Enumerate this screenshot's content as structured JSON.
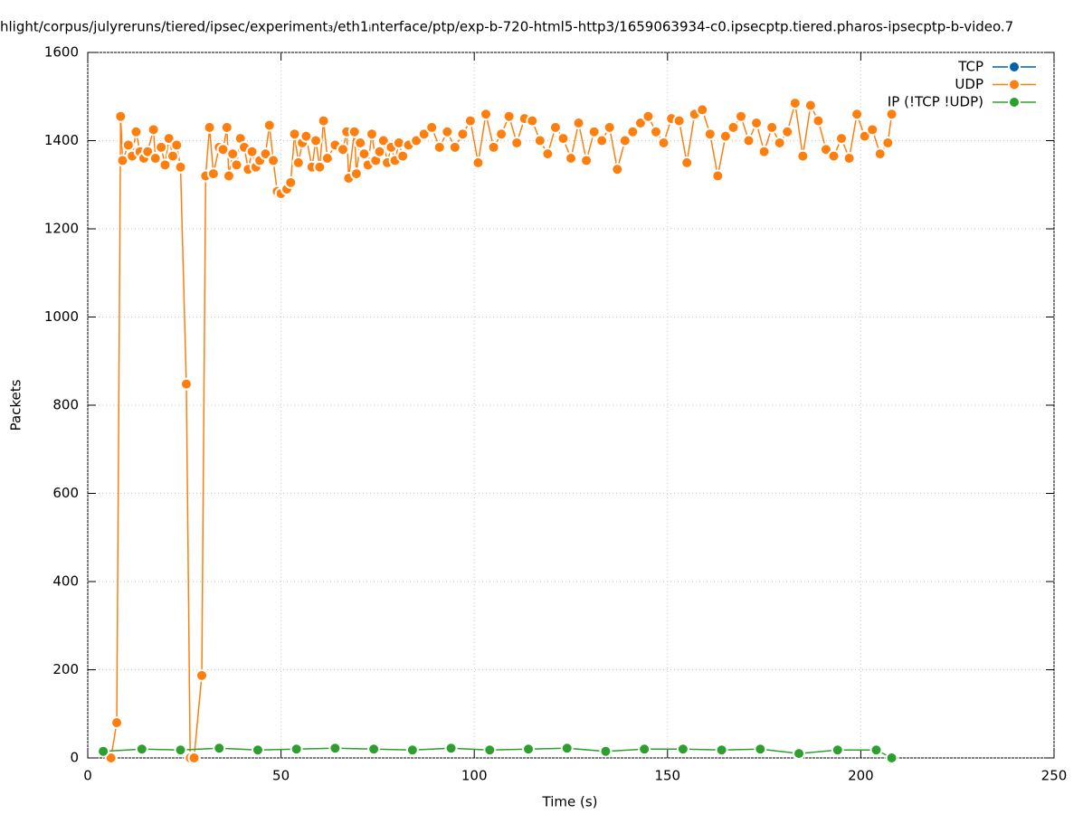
{
  "chart_data": {
    "type": "line",
    "title": "hlight/corpus/julyreruns/tiered/ipsec/experiment₃/eth1ᵢnterface/ptp/exp-b-720-html5-http3/1659063934-c0.ipsecptp.tiered.pharos-ipsecptp-b-video.7",
    "x_label": "Time (s)",
    "y_label": "Packets",
    "xlim": [
      0,
      250
    ],
    "xticks": [
      0,
      50,
      100,
      150,
      200,
      250
    ],
    "ylim": [
      0,
      1600
    ],
    "yticks": [
      0,
      200,
      400,
      600,
      800,
      1000,
      1200,
      1400,
      1600
    ],
    "grid": true,
    "legend": "top-right",
    "series": [
      {
        "name": "TCP",
        "color": "#0060ad",
        "x": [],
        "values": []
      },
      {
        "name": "UDP",
        "color": "#ff7f0e",
        "x": [
          6,
          7.5,
          8.5,
          9,
          10.5,
          11.5,
          12.5,
          13.5,
          14.5,
          15.5,
          17,
          17.5,
          19,
          20,
          21,
          22,
          23,
          24,
          25.5,
          26.5,
          27.5,
          29.5,
          30.5,
          31.5,
          32.5,
          34,
          35,
          36,
          36.5,
          37.5,
          38.5,
          39.5,
          40.5,
          41.5,
          42.5,
          43.5,
          44.5,
          46,
          47,
          48,
          49,
          50,
          51.5,
          52.5,
          53.5,
          54.5,
          55.5,
          56.5,
          58,
          59,
          60,
          61,
          62,
          64,
          66,
          67,
          67.5,
          69,
          69.5,
          70.5,
          71.5,
          72.5,
          73.5,
          74.5,
          75.5,
          76.5,
          77.5,
          78.5,
          79.5,
          80.5,
          81.5,
          83,
          85,
          87,
          89,
          91,
          93,
          95,
          97,
          99,
          101,
          103,
          105,
          107,
          109,
          111,
          113,
          115,
          117,
          119,
          121,
          123,
          125,
          127,
          129,
          131,
          133,
          135,
          137,
          139,
          141,
          143,
          145,
          147,
          149,
          151,
          153,
          155,
          157,
          159,
          161,
          163,
          165,
          167,
          169,
          171,
          173,
          175,
          177,
          179,
          181,
          183,
          185,
          187,
          189,
          191,
          193,
          195,
          197,
          199,
          201,
          203,
          205,
          207,
          208
        ],
        "values": [
          0,
          80,
          1455,
          1355,
          1390,
          1365,
          1420,
          1375,
          1360,
          1375,
          1425,
          1360,
          1385,
          1345,
          1405,
          1365,
          1390,
          1340,
          848,
          0,
          0,
          187,
          1320,
          1430,
          1325,
          1385,
          1380,
          1430,
          1320,
          1370,
          1345,
          1405,
          1385,
          1335,
          1375,
          1340,
          1355,
          1370,
          1435,
          1355,
          1285,
          1280,
          1290,
          1305,
          1415,
          1350,
          1395,
          1410,
          1340,
          1400,
          1340,
          1445,
          1360,
          1390,
          1380,
          1420,
          1315,
          1420,
          1325,
          1395,
          1370,
          1345,
          1415,
          1355,
          1375,
          1400,
          1350,
          1385,
          1355,
          1395,
          1365,
          1390,
          1400,
          1415,
          1430,
          1385,
          1420,
          1385,
          1415,
          1445,
          1350,
          1460,
          1385,
          1415,
          1455,
          1395,
          1450,
          1445,
          1400,
          1370,
          1430,
          1405,
          1360,
          1440,
          1355,
          1420,
          1400,
          1430,
          1335,
          1400,
          1420,
          1440,
          1455,
          1420,
          1395,
          1450,
          1445,
          1350,
          1460,
          1470,
          1415,
          1320,
          1410,
          1430,
          1455,
          1400,
          1440,
          1375,
          1430,
          1395,
          1420,
          1485,
          1365,
          1480,
          1445,
          1380,
          1365,
          1405,
          1360,
          1460,
          1410,
          1425,
          1370,
          1395,
          1460
        ]
      },
      {
        "name": "IP (!TCP  !UDP)",
        "color": "#2ca02c",
        "x": [
          4,
          14,
          24,
          34,
          44,
          54,
          64,
          74,
          84,
          94,
          104,
          114,
          124,
          134,
          144,
          154,
          164,
          174,
          184,
          194,
          204,
          208
        ],
        "values": [
          15,
          20,
          18,
          22,
          18,
          20,
          22,
          20,
          18,
          22,
          18,
          20,
          22,
          15,
          20,
          20,
          18,
          20,
          10,
          18,
          18,
          0
        ]
      }
    ]
  }
}
